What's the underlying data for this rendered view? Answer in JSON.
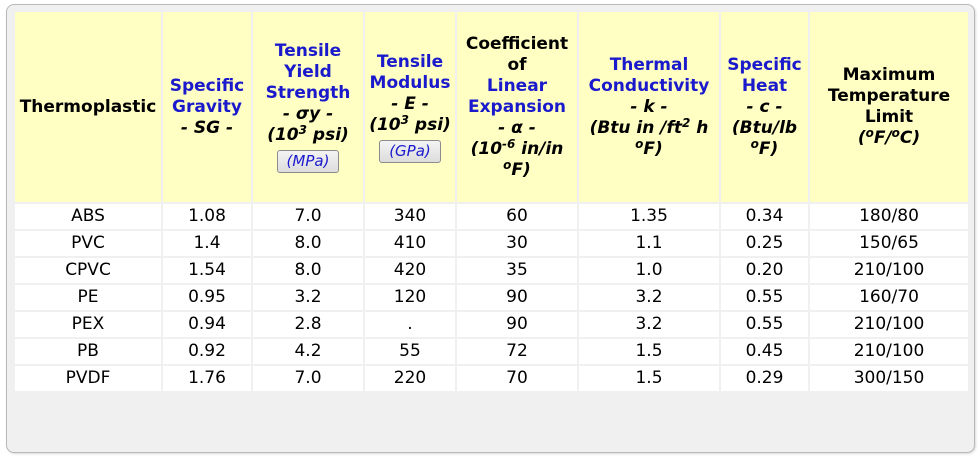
{
  "columns": [
    {
      "name": "Thermoplastic"
    },
    {
      "name": "Specific Gravity",
      "symbol": "- SG -"
    },
    {
      "name": "Tensile Yield Strength",
      "symbol": "- σy -",
      "unit_base": "(10",
      "unit_exp": "3",
      "unit_rest": " psi)",
      "si_unit": "(MPa)"
    },
    {
      "name": "Tensile Modulus",
      "symbol": "- E -",
      "unit_base": "(10",
      "unit_exp": "3",
      "unit_rest": " psi)",
      "si_unit": "(GPa)"
    },
    {
      "name_top": "Coefficient of",
      "name": "Linear Expansion",
      "symbol": "- α -",
      "unit_base": "(10",
      "unit_exp": "-6",
      "unit_rest": " in/in ",
      "unit_exp2": "o",
      "unit_rest2": "F)"
    },
    {
      "name": "Thermal Conductivity",
      "symbol": "- k -",
      "unit_base": "(Btu in /ft",
      "unit_exp": "2",
      "unit_rest": " h ",
      "unit_exp2": "o",
      "unit_rest2": "F)"
    },
    {
      "name": "Specific Heat",
      "symbol": "- c -",
      "unit_base": "(Btu/lb ",
      "unit_exp": "o",
      "unit_rest": "F)"
    },
    {
      "name": "Maximum Temperature Limit",
      "unit_base": "(",
      "unit_exp": "o",
      "unit_rest": "F/",
      "unit_exp2": "o",
      "unit_rest2": "C)"
    }
  ],
  "rows": [
    [
      "ABS",
      "1.08",
      "7.0",
      "340",
      "60",
      "1.35",
      "0.34",
      "180/80"
    ],
    [
      "PVC",
      "1.4",
      "8.0",
      "410",
      "30",
      "1.1",
      "0.25",
      "150/65"
    ],
    [
      "CPVC",
      "1.54",
      "8.0",
      "420",
      "35",
      "1.0",
      "0.20",
      "210/100"
    ],
    [
      "PE",
      "0.95",
      "3.2",
      "120",
      "90",
      "3.2",
      "0.55",
      "160/70"
    ],
    [
      "PEX",
      "0.94",
      "2.8",
      ".",
      "90",
      "3.2",
      "0.55",
      "210/100"
    ],
    [
      "PB",
      "0.92",
      "4.2",
      "55",
      "72",
      "1.5",
      "0.45",
      "210/100"
    ],
    [
      "PVDF",
      "1.76",
      "7.0",
      "220",
      "70",
      "1.5",
      "0.29",
      "300/150"
    ]
  ]
}
